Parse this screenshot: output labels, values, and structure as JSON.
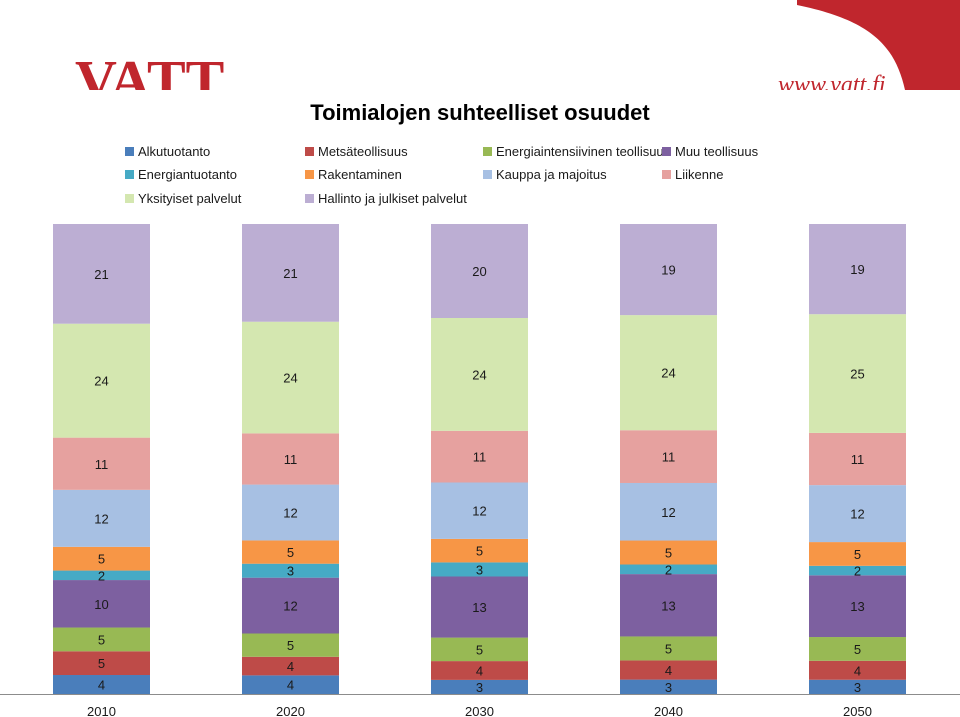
{
  "header": {
    "logo_text": "VATT",
    "website": "www.vatt.fi"
  },
  "chart_data": {
    "type": "bar",
    "stacked": true,
    "title": "Toimialojen suhteelliset osuudet",
    "xlabel": "",
    "ylabel": "",
    "legend_position": "top",
    "categories": [
      "2010",
      "2020",
      "2030",
      "2040",
      "2050"
    ],
    "series": [
      {
        "name": "Alkutuotanto",
        "color": "#4a7ebb",
        "values": [
          4,
          4,
          3,
          3,
          3
        ]
      },
      {
        "name": "Metsäteollisuus",
        "color": "#be4b48",
        "values": [
          5,
          4,
          4,
          4,
          4
        ]
      },
      {
        "name": "Energiaintensiivinen teollisuus",
        "color": "#98b954",
        "values": [
          5,
          5,
          5,
          5,
          5
        ]
      },
      {
        "name": "Muu teollisuus",
        "color": "#7d60a0",
        "values": [
          10,
          12,
          13,
          13,
          13
        ]
      },
      {
        "name": "Energiantuotanto",
        "color": "#46aac5",
        "values": [
          2,
          3,
          3,
          2,
          2
        ]
      },
      {
        "name": "Rakentaminen",
        "color": "#f79646",
        "values": [
          5,
          5,
          5,
          5,
          5
        ]
      },
      {
        "name": "Kauppa ja majoitus",
        "color": "#a7c0e3",
        "values": [
          12,
          12,
          12,
          12,
          12
        ]
      },
      {
        "name": "Liikenne",
        "color": "#e6a19f",
        "values": [
          11,
          11,
          11,
          11,
          11
        ]
      },
      {
        "name": "Yksityiset palvelut",
        "color": "#d4e7b0",
        "values": [
          24,
          24,
          24,
          24,
          25
        ]
      },
      {
        "name": "Hallinto ja julkiset palvelut",
        "color": "#bcaed3",
        "values": [
          21,
          21,
          20,
          19,
          19
        ]
      }
    ]
  }
}
